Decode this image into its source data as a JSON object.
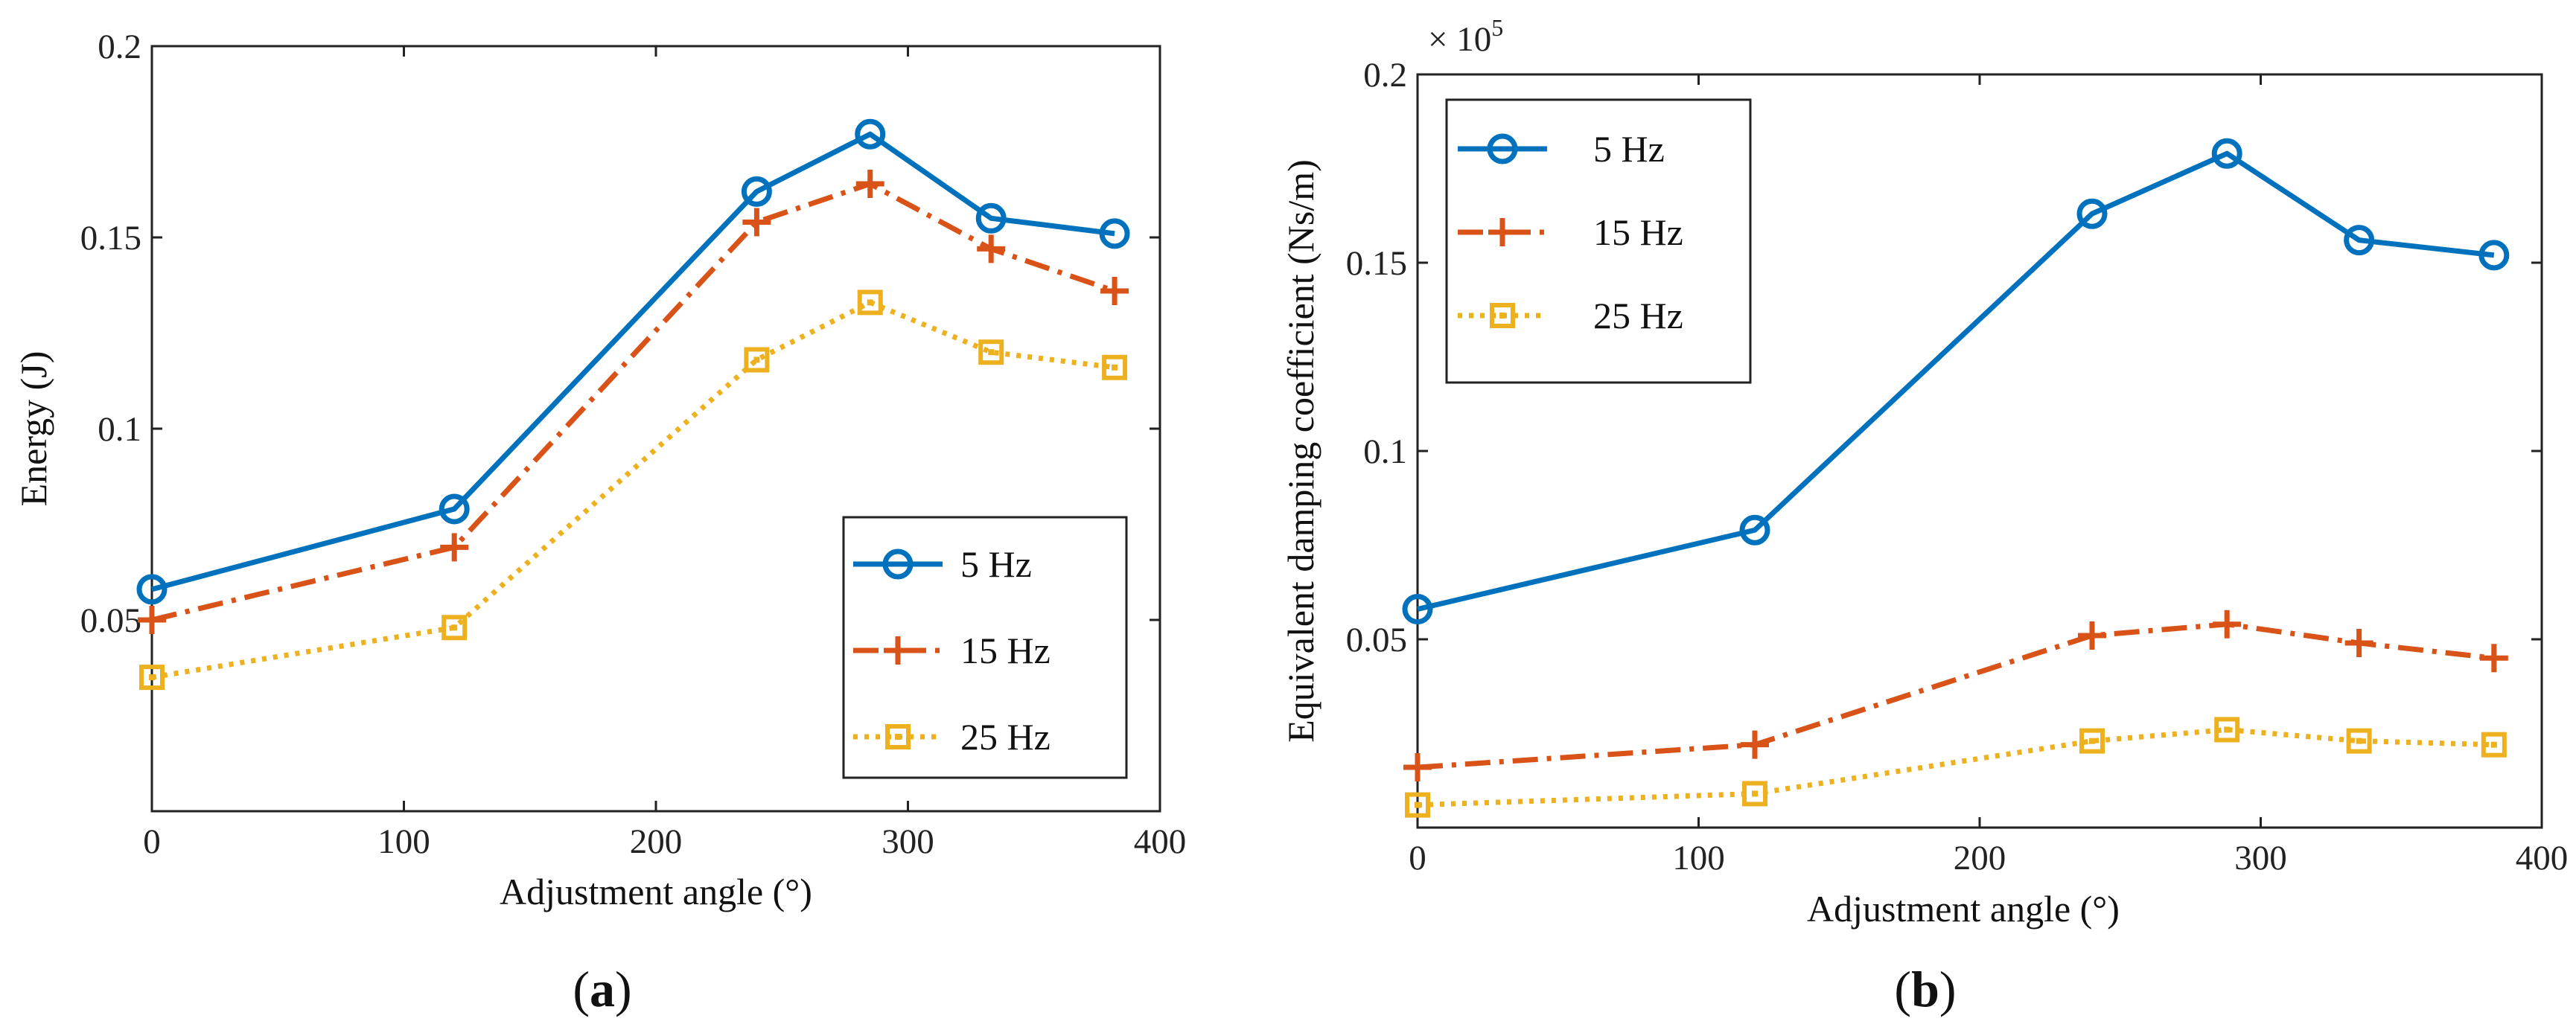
{
  "colors": {
    "s5": "#0072BD",
    "s15": "#D95319",
    "s25": "#EDB120"
  },
  "chart_data": [
    {
      "type": "line",
      "panel_label": "a",
      "xlabel": "Adjustment angle (°)",
      "ylabel": "Energy (J)",
      "xlim": [
        0,
        400
      ],
      "ylim": [
        0,
        0.2
      ],
      "xticks": [
        "0",
        "100",
        "200",
        "300",
        "400"
      ],
      "yticks": [
        "0.05",
        "0.1",
        "0.15",
        "0.2"
      ],
      "x": [
        0,
        120,
        240,
        285,
        333,
        382
      ],
      "series": [
        {
          "name": "5 Hz",
          "marker": "circle",
          "values": [
            0.058,
            0.079,
            0.162,
            0.177,
            0.155,
            0.151
          ]
        },
        {
          "name": "15 Hz",
          "marker": "plus",
          "values": [
            0.05,
            0.069,
            0.154,
            0.164,
            0.147,
            0.136
          ]
        },
        {
          "name": "25 Hz",
          "marker": "square",
          "values": [
            0.035,
            0.048,
            0.118,
            0.133,
            0.12,
            0.116
          ]
        }
      ],
      "legend_position": "bottom-right"
    },
    {
      "type": "line",
      "panel_label": "b",
      "xlabel": "Adjustment angle (°)",
      "ylabel": "Equivalent damping coefficient (Ns/m)",
      "multiplier": "× 10",
      "multiplier_exp": "5",
      "xlim": [
        0,
        400
      ],
      "ylim": [
        0,
        0.2
      ],
      "xticks": [
        "0",
        "100",
        "200",
        "300",
        "400"
      ],
      "yticks": [
        "0.05",
        "0.1",
        "0.15",
        "0.2"
      ],
      "x": [
        0,
        120,
        240,
        288,
        335,
        383
      ],
      "series": [
        {
          "name": "5 Hz",
          "marker": "circle",
          "values": [
            0.058,
            0.079,
            0.163,
            0.179,
            0.156,
            0.152
          ]
        },
        {
          "name": "15 Hz",
          "marker": "plus",
          "values": [
            0.016,
            0.022,
            0.051,
            0.054,
            0.049,
            0.045
          ]
        },
        {
          "name": "25 Hz",
          "marker": "square",
          "values": [
            0.006,
            0.009,
            0.023,
            0.026,
            0.023,
            0.022
          ]
        }
      ],
      "legend_position": "top-left"
    }
  ]
}
